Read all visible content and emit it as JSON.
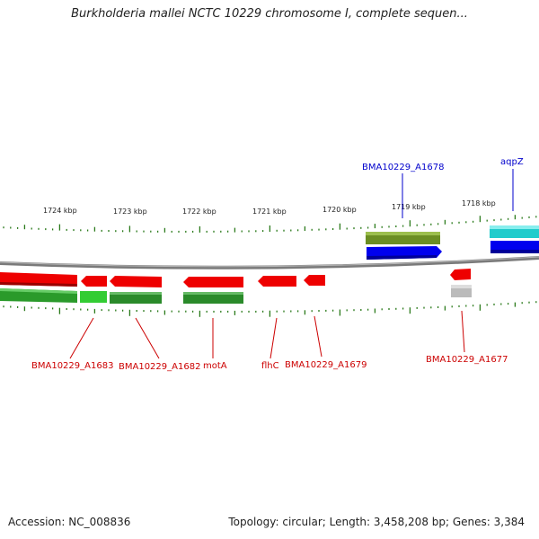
{
  "title": "Burkholderia mallei NCTC 10229 chromosome I, complete sequen...",
  "footer": {
    "accession": "Accession: NC_008836",
    "summary": "Topology: circular; Length: 3,458,208 bp; Genes: 3,384"
  },
  "ticks": [
    "1724 kbp",
    "1723 kbp",
    "1722 kbp",
    "1721 kbp",
    "1720 kbp",
    "1719 kbp",
    "1718 kbp"
  ],
  "labels": {
    "top": [
      {
        "text": "BMA10229_A1678",
        "color": "#0000cc"
      },
      {
        "text": "aqpZ",
        "color": "#0000cc"
      }
    ],
    "bottom": [
      {
        "text": "BMA10229_A1683",
        "color": "#cc0000"
      },
      {
        "text": "BMA10229_A1682",
        "color": "#cc0000"
      },
      {
        "text": "motA",
        "color": "#cc0000"
      },
      {
        "text": "flhC",
        "color": "#cc0000"
      },
      {
        "text": "BMA10229_A1679",
        "color": "#cc0000"
      },
      {
        "text": "BMA10229_A1677",
        "color": "#cc0000"
      }
    ]
  },
  "colors": {
    "backbone": "#888888",
    "tick": "#2a7a1a",
    "cds_red": "#ee0000",
    "cds_blue": "#0000ee",
    "cds_cyan": "#22cccc",
    "cds_olive": "#6b8e23",
    "cds_green": "#2a8a2a",
    "cds_lightgreen": "#33cc33",
    "cds_gray": "#bbbbbb"
  }
}
